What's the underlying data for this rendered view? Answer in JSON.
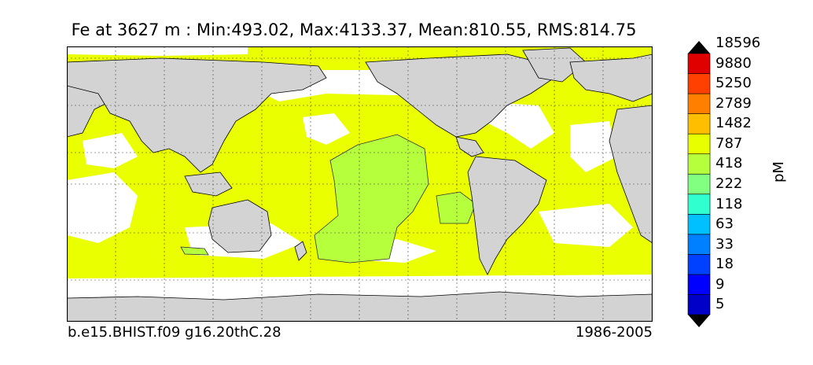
{
  "title": "Fe at 3627 m : Min:493.02, Max:4133.37, Mean:810.55, RMS:814.75",
  "footer": {
    "case_name": "b.e15.BHIST.f09 g16.20thC.28",
    "period": "1986-2005"
  },
  "colorbar": {
    "unit": "pM",
    "levels": [
      "5",
      "9",
      "18",
      "33",
      "63",
      "118",
      "222",
      "418",
      "787",
      "1482",
      "2789",
      "5250",
      "9880",
      "18596"
    ],
    "colors": [
      "#00007f",
      "#0000c8",
      "#0000ff",
      "#0040ff",
      "#0080ff",
      "#00c0ff",
      "#30ffd0",
      "#80ff80",
      "#b5ff3c",
      "#e8ff00",
      "#ffbf00",
      "#ff8000",
      "#ff4000",
      "#e00000",
      "#800000"
    ]
  },
  "map": {
    "land_color": "#d3d3d3",
    "ocean_fill_color": "#eaff00",
    "mid_pacific_fill_color": "#b5ff3c",
    "grid": true
  }
}
